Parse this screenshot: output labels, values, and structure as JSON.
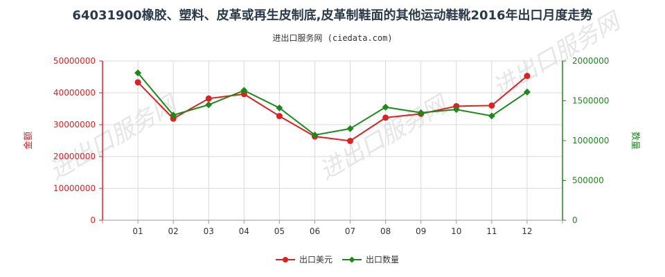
{
  "title": "64031900橡胶、塑料、皮革或再生皮制底,皮革制鞋面的其他运动鞋靴2016年出口月度走势",
  "subtitle": "进出口服务网 (ciedata.com)",
  "watermark": "进出口服务网",
  "chart_data": {
    "type": "line",
    "categories": [
      "01",
      "02",
      "03",
      "04",
      "05",
      "06",
      "07",
      "08",
      "09",
      "10",
      "11",
      "12"
    ],
    "y_left": {
      "label": "金额",
      "ticks": [
        "0",
        "10000000",
        "20000000",
        "30000000",
        "40000000",
        "50000000"
      ],
      "range": [
        0,
        50000000
      ],
      "color": "#e02020"
    },
    "y_right": {
      "label": "数量",
      "ticks": [
        "0",
        "500000",
        "1000000",
        "1500000",
        "2000000"
      ],
      "range": [
        0,
        2000000
      ],
      "color": "#1a8a1a"
    },
    "series": [
      {
        "name": "出口美元",
        "axis": "left",
        "color": "#e02020",
        "marker": "circle",
        "values": [
          43300000,
          31900000,
          38200000,
          39600000,
          32700000,
          26300000,
          24900000,
          32200000,
          33400000,
          35800000,
          36000000,
          45300000
        ]
      },
      {
        "name": "出口数量",
        "axis": "right",
        "color": "#1a8a1a",
        "marker": "diamond",
        "values": [
          1850000,
          1320000,
          1450000,
          1630000,
          1410000,
          1070000,
          1150000,
          1420000,
          1350000,
          1390000,
          1310000,
          1610000
        ]
      }
    ],
    "grid": true,
    "legend_position": "bottom"
  }
}
